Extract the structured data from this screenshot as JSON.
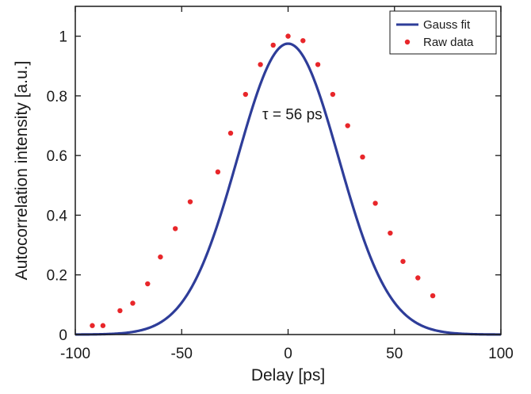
{
  "chart_data": {
    "type": "line",
    "xlabel": "Delay [ps]",
    "ylabel": "Autocorrelation intensity [a.u.]",
    "xlim": [
      -100,
      100
    ],
    "ylim": [
      0,
      1.1
    ],
    "xticks": [
      -100,
      -50,
      0,
      50,
      100
    ],
    "xtick_labels": [
      "-100",
      "-50",
      "0",
      "50",
      "100"
    ],
    "yticks": [
      0,
      0.2,
      0.4,
      0.6,
      0.8,
      1
    ],
    "ytick_labels": [
      "0",
      "0.2",
      "0.4",
      "0.6",
      "0.8",
      "1"
    ],
    "grid": false,
    "legend_position": "top-right",
    "annotation": {
      "text": "τ = 56 ps",
      "x": 2,
      "y": 0.7
    },
    "series": [
      {
        "name": "Gauss fit",
        "kind": "line",
        "color": "#2e3d99",
        "model": "gaussian",
        "amplitude": 0.975,
        "center": 0,
        "fwhm": 56,
        "x_range": [
          -100,
          100
        ]
      },
      {
        "name": "Raw data",
        "kind": "scatter",
        "color": "#e8262a",
        "x": [
          -92,
          -87,
          -79,
          -73,
          -66,
          -60,
          -53,
          -46,
          -33,
          -27,
          -20,
          -13,
          -7,
          0,
          7,
          14,
          21,
          28,
          35,
          41,
          48,
          54,
          61,
          68
        ],
        "y": [
          0.03,
          0.03,
          0.08,
          0.105,
          0.17,
          0.26,
          0.355,
          0.445,
          0.545,
          0.675,
          0.805,
          0.905,
          0.97,
          1.0,
          0.985,
          0.905,
          0.805,
          0.7,
          0.595,
          0.44,
          0.34,
          0.245,
          0.19,
          0.13
        ]
      }
    ]
  }
}
